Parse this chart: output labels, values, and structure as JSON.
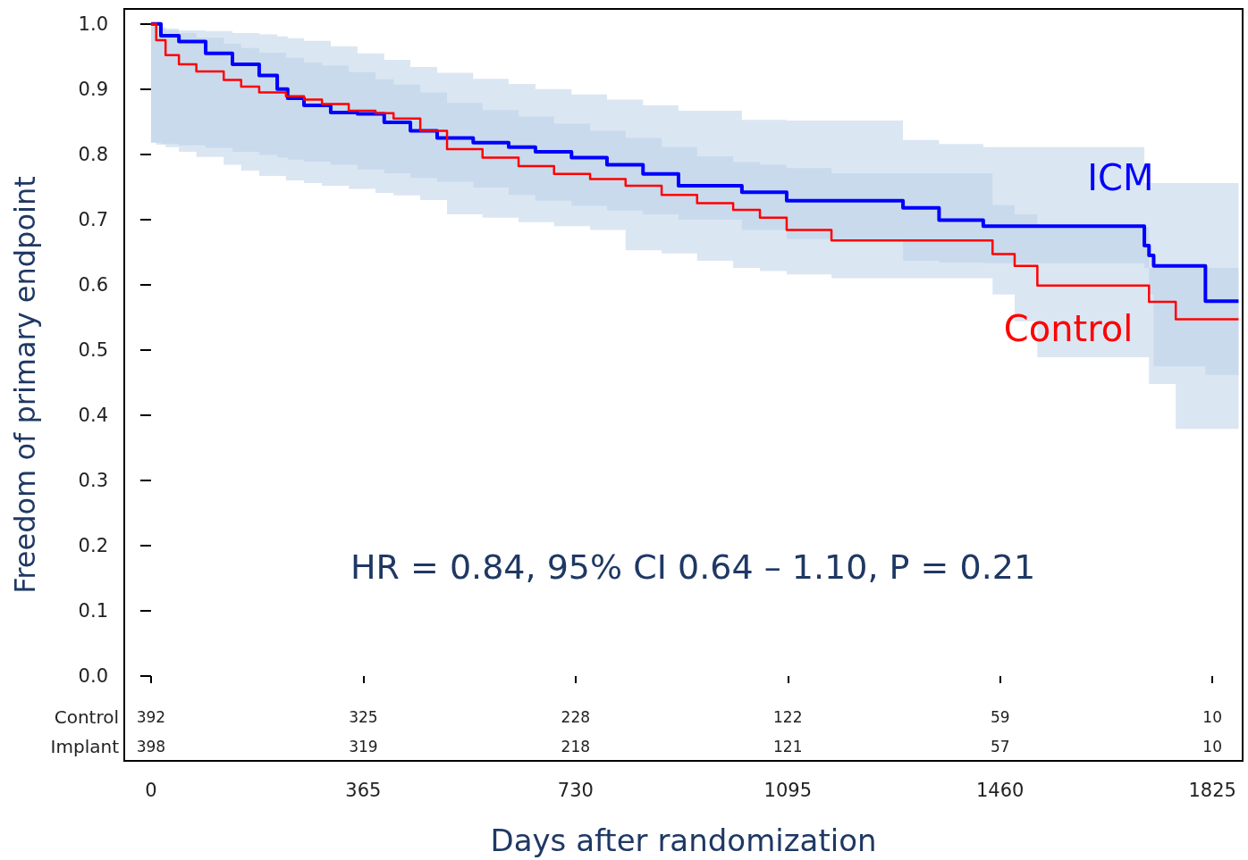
{
  "chart_data": {
    "type": "step",
    "xlabel": "Days after randomization",
    "ylabel": "Freedom of primary endpoint",
    "xlim": [
      -46,
      1877
    ],
    "xticks": [
      0,
      365,
      730,
      1095,
      1460,
      1825
    ],
    "ylim": [
      -0.13,
      1.023
    ],
    "yticks": [
      {
        "value": 0,
        "label": "0.0"
      },
      {
        "value": 0.1,
        "label": "0.1"
      },
      {
        "value": 0.2,
        "label": "0.2"
      },
      {
        "value": 0.3,
        "label": "0.3"
      },
      {
        "value": 0.4,
        "label": "0.4"
      },
      {
        "value": 0.5,
        "label": "0.5"
      },
      {
        "value": 0.6,
        "label": "0.6"
      },
      {
        "value": 0.7,
        "label": "0.7"
      },
      {
        "value": 0.8,
        "label": "0.8"
      },
      {
        "value": 0.9,
        "label": "0.9"
      },
      {
        "value": 1,
        "label": "1.0"
      }
    ],
    "grid": false,
    "legend": false,
    "series": [
      {
        "name": "ICM",
        "color": "#0000ff",
        "x": [
          0,
          17,
          48,
          94,
          140,
          186,
          217,
          235,
          263,
          309,
          355,
          401,
          446,
          492,
          554,
          615,
          661,
          723,
          784,
          846,
          907,
          1016,
          1093,
          1293,
          1355,
          1431,
          1708,
          1716,
          1724,
          1813,
          1870
        ],
        "values": [
          1.0,
          0.982,
          0.973,
          0.955,
          0.938,
          0.921,
          0.9,
          0.886,
          0.875,
          0.864,
          0.862,
          0.849,
          0.836,
          0.825,
          0.818,
          0.811,
          0.804,
          0.795,
          0.784,
          0.77,
          0.752,
          0.742,
          0.729,
          0.718,
          0.699,
          0.69,
          0.66,
          0.645,
          0.629,
          0.575,
          0.575
        ],
        "upper": [
          0.999,
          0.993,
          0.99,
          0.989,
          0.986,
          0.984,
          0.981,
          0.978,
          0.974,
          0.966,
          0.955,
          0.945,
          0.934,
          0.925,
          0.916,
          0.908,
          0.9,
          0.892,
          0.884,
          0.875,
          0.867,
          0.853,
          0.852,
          0.822,
          0.816,
          0.811,
          0.756,
          0.756,
          0.756,
          0.756,
          0.756
        ],
        "lower": [
          0.818,
          0.816,
          0.814,
          0.81,
          0.804,
          0.799,
          0.795,
          0.792,
          0.789,
          0.784,
          0.777,
          0.771,
          0.764,
          0.758,
          0.749,
          0.738,
          0.729,
          0.721,
          0.714,
          0.708,
          0.7,
          0.684,
          0.67,
          0.637,
          0.634,
          0.633,
          0.626,
          0.585,
          0.475,
          0.462,
          0.462
        ]
      },
      {
        "name": "Control",
        "color": "#ff0000",
        "x": [
          0,
          9,
          25,
          48,
          78,
          125,
          155,
          186,
          232,
          263,
          294,
          340,
          386,
          417,
          463,
          509,
          570,
          632,
          693,
          755,
          816,
          878,
          939,
          1001,
          1047,
          1093,
          1170,
          1447,
          1485,
          1524,
          1716,
          1762,
          1870
        ],
        "values": [
          1.0,
          0.975,
          0.952,
          0.938,
          0.927,
          0.914,
          0.904,
          0.895,
          0.889,
          0.884,
          0.877,
          0.867,
          0.863,
          0.855,
          0.836,
          0.808,
          0.795,
          0.782,
          0.77,
          0.762,
          0.752,
          0.738,
          0.725,
          0.715,
          0.703,
          0.684,
          0.668,
          0.647,
          0.629,
          0.599,
          0.574,
          0.547,
          0.547
        ],
        "upper": [
          0.996,
          0.995,
          0.99,
          0.986,
          0.979,
          0.97,
          0.963,
          0.956,
          0.948,
          0.941,
          0.936,
          0.926,
          0.915,
          0.907,
          0.895,
          0.879,
          0.868,
          0.858,
          0.847,
          0.836,
          0.825,
          0.811,
          0.797,
          0.788,
          0.784,
          0.779,
          0.771,
          0.722,
          0.708,
          0.688,
          0.626,
          0.626,
          0.626
        ],
        "lower": [
          0.818,
          0.815,
          0.811,
          0.804,
          0.796,
          0.784,
          0.775,
          0.767,
          0.76,
          0.756,
          0.752,
          0.747,
          0.741,
          0.737,
          0.73,
          0.708,
          0.703,
          0.696,
          0.69,
          0.684,
          0.653,
          0.648,
          0.637,
          0.626,
          0.621,
          0.616,
          0.61,
          0.585,
          0.544,
          0.489,
          0.448,
          0.379,
          0.379
        ]
      }
    ],
    "annotations": [
      "Control",
      "Implant",
      "HR = 0.84, 95% CI 0.64 – 1.10, P = 0.21",
      "392",
      "325",
      "228",
      "122",
      "59",
      "10",
      "398",
      "319",
      "218",
      "121",
      "57",
      "10"
    ]
  }
}
